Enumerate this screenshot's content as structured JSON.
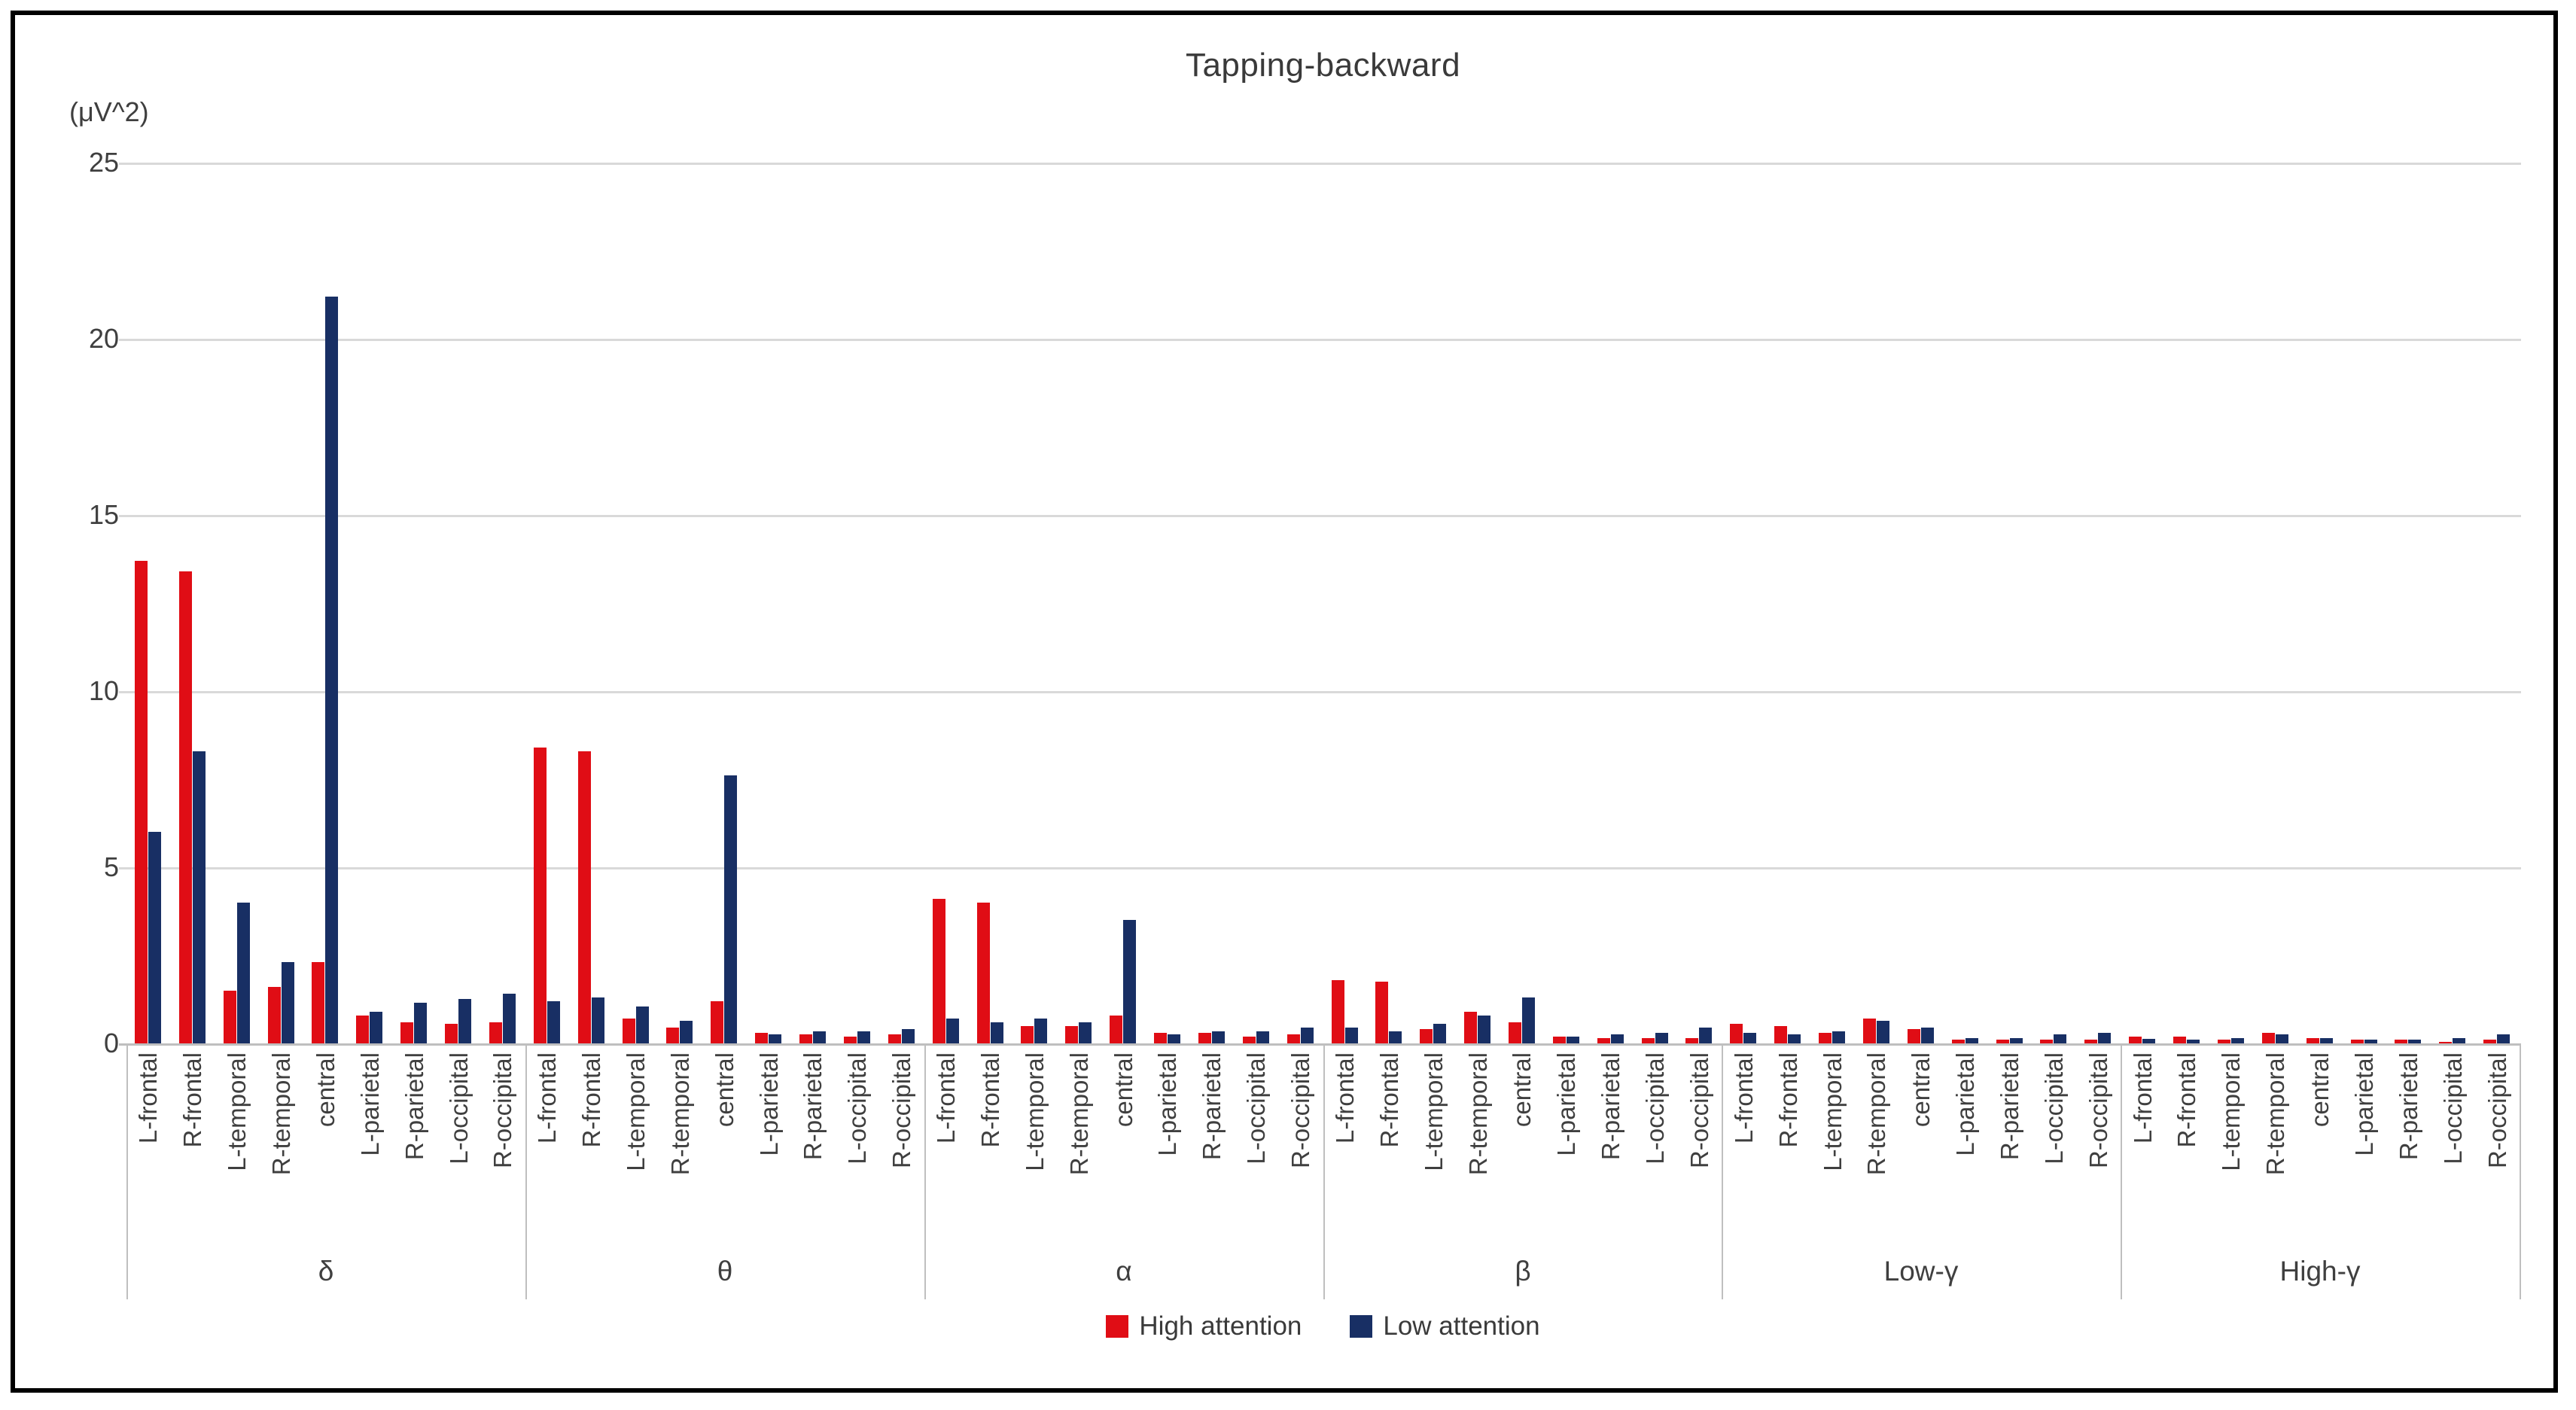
{
  "chart_data": {
    "type": "bar",
    "title": "Tapping-backward",
    "y_unit": "(μV^2)",
    "ylabel": "",
    "xlabel": "",
    "ylim": [
      0,
      25
    ],
    "yticks": [
      0,
      5,
      10,
      15,
      20,
      25
    ],
    "grid": true,
    "legend_position": "bottom",
    "group_labels": [
      "δ",
      "θ",
      "α",
      "β",
      "Low-γ",
      "High-γ"
    ],
    "categories": [
      "L-frontal",
      "R-frontal",
      "L-temporal",
      "R-temporal",
      "central",
      "L-parietal",
      "R-parietal",
      "L-occipital",
      "R-occipital"
    ],
    "series": [
      {
        "name": "High attention",
        "color": "#e00d15",
        "values": [
          [
            13.7,
            13.4,
            1.5,
            1.6,
            2.3,
            0.8,
            0.6,
            0.55,
            0.6
          ],
          [
            8.4,
            8.3,
            0.7,
            0.45,
            1.2,
            0.3,
            0.25,
            0.2,
            0.25
          ],
          [
            4.1,
            4.0,
            0.5,
            0.5,
            0.8,
            0.3,
            0.3,
            0.2,
            0.25
          ],
          [
            1.8,
            1.75,
            0.4,
            0.9,
            0.6,
            0.2,
            0.15,
            0.15,
            0.15
          ],
          [
            0.55,
            0.5,
            0.3,
            0.7,
            0.4,
            0.1,
            0.1,
            0.1,
            0.1
          ],
          [
            0.2,
            0.2,
            0.1,
            0.3,
            0.15,
            0.1,
            0.1,
            0.05,
            0.1
          ]
        ]
      },
      {
        "name": "Low attention",
        "color": "#182f64",
        "values": [
          [
            6.0,
            8.3,
            4.0,
            2.3,
            21.2,
            0.9,
            1.15,
            1.25,
            1.4
          ],
          [
            1.2,
            1.3,
            1.05,
            0.65,
            7.6,
            0.25,
            0.35,
            0.35,
            0.4
          ],
          [
            0.7,
            0.6,
            0.7,
            0.6,
            3.5,
            0.25,
            0.35,
            0.35,
            0.45
          ],
          [
            0.45,
            0.35,
            0.55,
            0.8,
            1.3,
            0.2,
            0.25,
            0.3,
            0.45
          ],
          [
            0.3,
            0.25,
            0.35,
            0.65,
            0.45,
            0.15,
            0.15,
            0.25,
            0.3
          ],
          [
            0.12,
            0.1,
            0.15,
            0.25,
            0.15,
            0.1,
            0.1,
            0.15,
            0.25
          ]
        ]
      }
    ]
  }
}
